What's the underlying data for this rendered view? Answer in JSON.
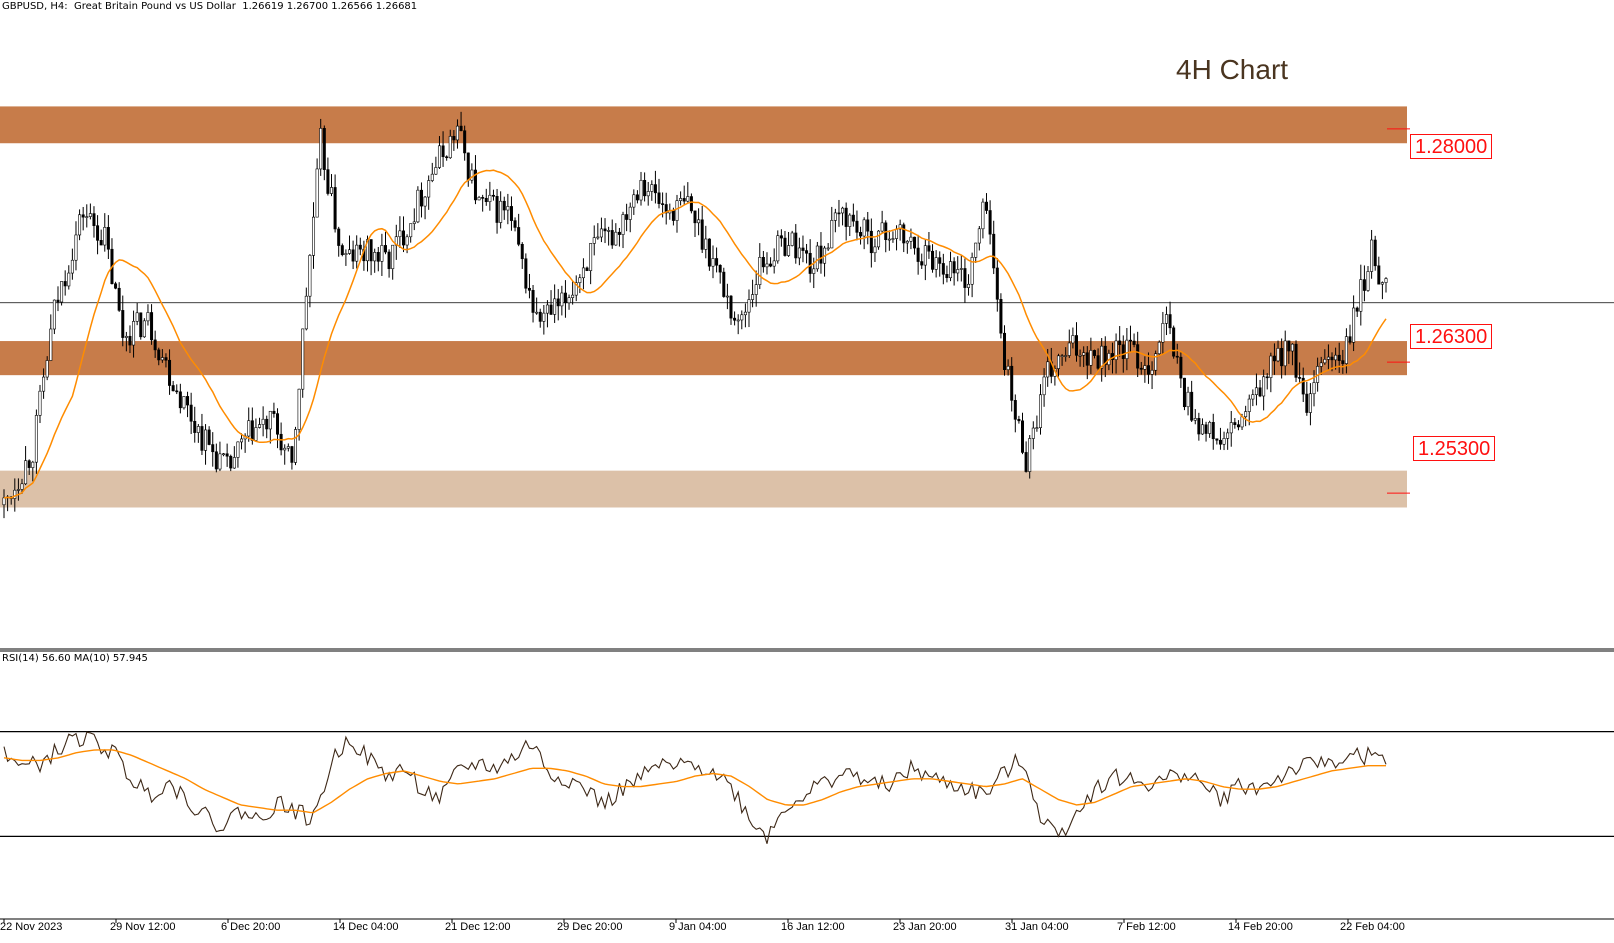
{
  "header": {
    "symbol_line": "GBPUSD, H4:  Great Britain Pound vs US Dollar  1.26619 1.26700 1.26566 1.26681"
  },
  "annotation": {
    "title": "4H Chart"
  },
  "colors": {
    "zone_dark": "#c77c4a",
    "zone_light": "#dcc1a8",
    "ma_line": "#ff8c00",
    "rsi_line": "#3d2817",
    "candle": "#000000",
    "level_label": "#ff1010"
  },
  "levels": [
    {
      "label": "1.28000",
      "zone": [
        1.2785,
        1.2812
      ],
      "shade": "dark"
    },
    {
      "label": "1.26300",
      "zone": [
        1.2615,
        1.264
      ],
      "shade": "dark"
    },
    {
      "label": "1.25300",
      "zone": [
        1.2518,
        1.2545
      ],
      "shade": "light"
    }
  ],
  "rsi_panel": {
    "label": "RSI(14) 56.60 MA(10) 57.945",
    "levels": [
      70,
      30
    ]
  },
  "chart_data": {
    "type": "candlestick",
    "xlabel": "",
    "ylabel": "",
    "ylim": [
      1.2415,
      1.289
    ],
    "current_price": 1.26681,
    "x_tick_labels": [
      "22 Nov 2023",
      "29 Nov 12:00",
      "6 Dec 20:00",
      "14 Dec 04:00",
      "21 Dec 12:00",
      "29 Dec 20:00",
      "9 Jan 04:00",
      "16 Jan 12:00",
      "23 Jan 20:00",
      "31 Jan 04:00",
      "7 Feb 12:00",
      "14 Feb 20:00",
      "22 Feb 04:00"
    ],
    "close_path": [
      [
        0,
        1.252
      ],
      [
        8,
        1.256
      ],
      [
        14,
        1.2662
      ],
      [
        22,
        1.2735
      ],
      [
        28,
        1.2715
      ],
      [
        33,
        1.2645
      ],
      [
        40,
        1.2655
      ],
      [
        47,
        1.261
      ],
      [
        55,
        1.257
      ],
      [
        62,
        1.2545
      ],
      [
        69,
        1.2575
      ],
      [
        75,
        1.258
      ],
      [
        80,
        1.2545
      ],
      [
        84,
        1.2675
      ],
      [
        88,
        1.2785
      ],
      [
        94,
        1.27
      ],
      [
        100,
        1.2705
      ],
      [
        107,
        1.27
      ],
      [
        113,
        1.273
      ],
      [
        119,
        1.2765
      ],
      [
        126,
        1.2795
      ],
      [
        132,
        1.274
      ],
      [
        140,
        1.2735
      ],
      [
        148,
        1.2655
      ],
      [
        155,
        1.2665
      ],
      [
        163,
        1.2705
      ],
      [
        170,
        1.272
      ],
      [
        177,
        1.276
      ],
      [
        184,
        1.2735
      ],
      [
        190,
        1.274
      ],
      [
        197,
        1.27
      ],
      [
        204,
        1.265
      ],
      [
        210,
        1.2695
      ],
      [
        218,
        1.2715
      ],
      [
        225,
        1.2695
      ],
      [
        233,
        1.2735
      ],
      [
        240,
        1.2715
      ],
      [
        247,
        1.272
      ],
      [
        255,
        1.2705
      ],
      [
        262,
        1.2695
      ],
      [
        268,
        1.2685
      ],
      [
        273,
        1.2745
      ],
      [
        276,
        1.2665
      ],
      [
        280,
        1.2595
      ],
      [
        284,
        1.2555
      ],
      [
        290,
        1.2615
      ],
      [
        297,
        1.2635
      ],
      [
        305,
        1.263
      ],
      [
        312,
        1.2635
      ],
      [
        318,
        1.262
      ],
      [
        323,
        1.2655
      ],
      [
        328,
        1.26
      ],
      [
        333,
        1.2575
      ],
      [
        339,
        1.2565
      ],
      [
        346,
        1.259
      ],
      [
        352,
        1.262
      ],
      [
        357,
        1.264
      ],
      [
        362,
        1.2585
      ],
      [
        367,
        1.263
      ],
      [
        372,
        1.2625
      ],
      [
        376,
        1.2665
      ],
      [
        380,
        1.2705
      ],
      [
        384,
        1.268
      ]
    ],
    "rsi": {
      "values": [
        63,
        56,
        58,
        63,
        68,
        66,
        62,
        52,
        46,
        51,
        45,
        38,
        34,
        40,
        36,
        43,
        40,
        36,
        58,
        68,
        60,
        53,
        56,
        48,
        44,
        55,
        58,
        56,
        60,
        66,
        54,
        52,
        48,
        42,
        48,
        52,
        57,
        56,
        58,
        55,
        49,
        37,
        30,
        42,
        46,
        50,
        54,
        53,
        49,
        51,
        56,
        52,
        50,
        48,
        46,
        54,
        60,
        38,
        30,
        40,
        48,
        53,
        51,
        50,
        52,
        55,
        49,
        44,
        50,
        48,
        52,
        56,
        57,
        59,
        60,
        61,
        58
      ],
      "ma": [
        60,
        59,
        59,
        60,
        62,
        63,
        63,
        61,
        58,
        55,
        52,
        48,
        45,
        42,
        41,
        40,
        40,
        39,
        43,
        48,
        52,
        54,
        55,
        53,
        51,
        50,
        51,
        52,
        54,
        56,
        56,
        55,
        53,
        50,
        49,
        49,
        50,
        51,
        53,
        54,
        53,
        49,
        44,
        42,
        42,
        44,
        47,
        49,
        50,
        51,
        52,
        52,
        51,
        50,
        49,
        50,
        52,
        48,
        44,
        42,
        43,
        46,
        49,
        50,
        51,
        52,
        51,
        49,
        48,
        48,
        49,
        51,
        53,
        55,
        56,
        57,
        57
      ]
    }
  }
}
